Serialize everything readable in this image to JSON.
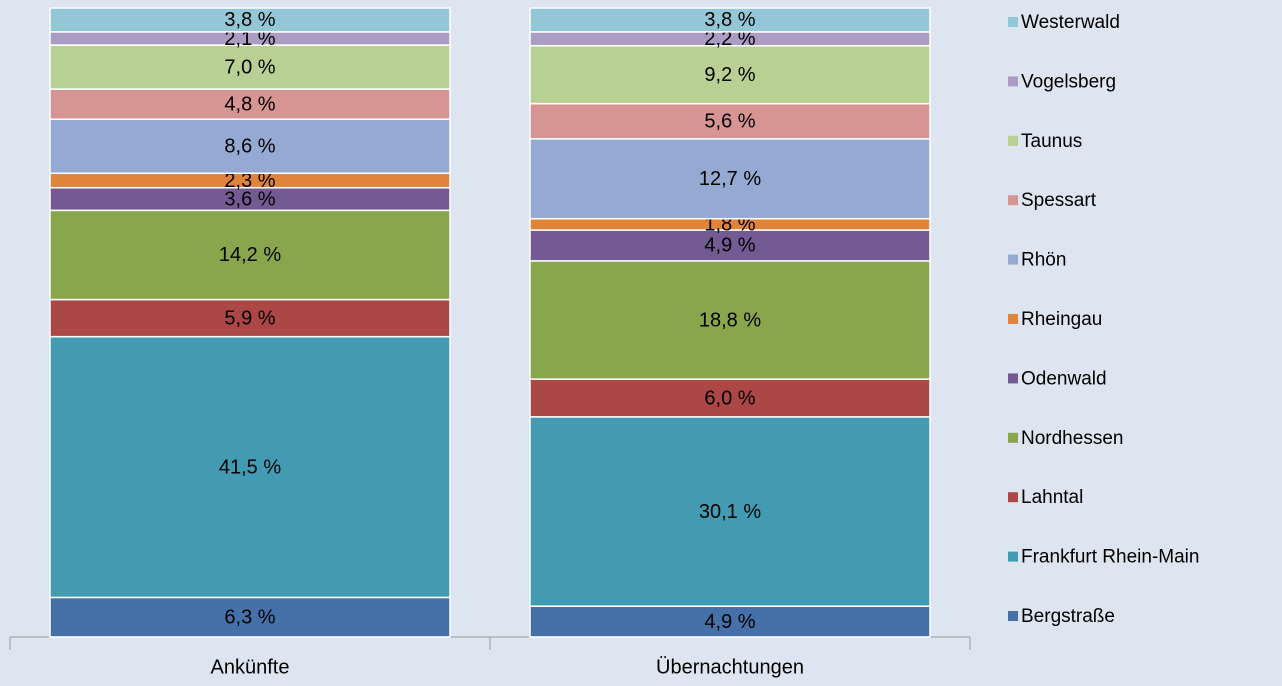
{
  "chart_data": {
    "type": "stacked_bar",
    "categories": [
      "Ankünfte",
      "Übernachtungen"
    ],
    "series": [
      {
        "name": "Bergstraße",
        "color": "#4571a8",
        "values": [
          6.3,
          4.9
        ],
        "value_labels": [
          "6,3 %",
          "4,9 %"
        ]
      },
      {
        "name": "Frankfurt Rhein-Main",
        "color": "#429bb2",
        "values": [
          41.5,
          30.1
        ],
        "value_labels": [
          "41,5 %",
          "30,1 %"
        ]
      },
      {
        "name": "Lahntal",
        "color": "#ab4745",
        "values": [
          5.9,
          6.0
        ],
        "value_labels": [
          "5,9 %",
          "6,0 %"
        ]
      },
      {
        "name": "Nordhessen",
        "color": "#8aa64c",
        "values": [
          14.2,
          18.8
        ],
        "value_labels": [
          "14,2 %",
          "18,8 %"
        ]
      },
      {
        "name": "Odenwald",
        "color": "#735a93",
        "values": [
          3.6,
          4.9
        ],
        "value_labels": [
          "3,6 %",
          "4,9 %"
        ]
      },
      {
        "name": "Rheingau",
        "color": "#e0843a",
        "values": [
          2.3,
          1.8
        ],
        "value_labels": [
          "2,3 %",
          "1,8 %"
        ]
      },
      {
        "name": "Rhön",
        "color": "#94aad2",
        "values": [
          8.6,
          12.7
        ],
        "value_labels": [
          "8,6 %",
          "12,7 %"
        ]
      },
      {
        "name": "Spessart",
        "color": "#d69492",
        "values": [
          4.8,
          5.6
        ],
        "value_labels": [
          "4,8 %",
          "5,6 %"
        ]
      },
      {
        "name": "Taunus",
        "color": "#b9d094",
        "values": [
          7.0,
          9.2
        ],
        "value_labels": [
          "7,0 %",
          "9,2 %"
        ]
      },
      {
        "name": "Vogelsberg",
        "color": "#aa9cc3",
        "values": [
          2.1,
          2.2
        ],
        "value_labels": [
          "2,1 %",
          "2,2 %"
        ]
      },
      {
        "name": "Westerwald",
        "color": "#93c7d7",
        "values": [
          3.8,
          3.8
        ],
        "value_labels": [
          "3,8 %",
          "3,8 %"
        ]
      }
    ]
  }
}
